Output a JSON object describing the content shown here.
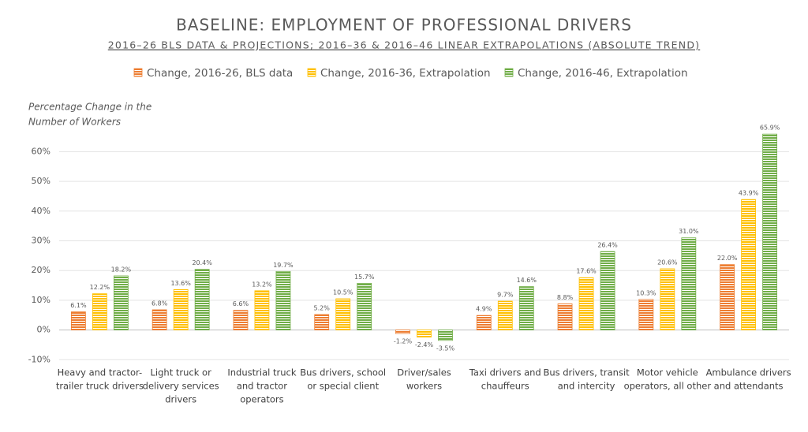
{
  "chart_data": {
    "type": "bar",
    "title": "BASELINE: EMPLOYMENT OF PROFESSIONAL DRIVERS",
    "subtitle": "2016–26 BLS DATA & PROJECTIONS; 2016–36 & 2016–46 LINEAR EXTRAPOLATIONS (ABSOLUTE TREND)",
    "y_label": [
      "Percentage Change in the",
      "Number of Workers"
    ],
    "categories": [
      [
        "Heavy and tractor-",
        "trailer truck drivers"
      ],
      [
        "Light truck or",
        "delivery services",
        "drivers"
      ],
      [
        "Industrial truck",
        "and tractor",
        "operators"
      ],
      [
        "Bus drivers, school",
        "or special client"
      ],
      [
        "Driver/sales",
        "workers"
      ],
      [
        "Taxi drivers and",
        "chauffeurs"
      ],
      [
        "Bus drivers, transit",
        "and intercity"
      ],
      [
        "Motor vehicle",
        "operators, all other"
      ],
      [
        "Ambulance drivers",
        "and attendants"
      ]
    ],
    "series": [
      {
        "name": "Change, 2016-26, BLS data",
        "color": "#ed7d31",
        "values": [
          6.1,
          6.8,
          6.6,
          5.2,
          -1.2,
          4.9,
          8.8,
          10.3,
          22.0
        ],
        "value_labels": [
          "6.1%",
          "6.8%",
          "6.6%",
          "5.2%",
          "-1.2%",
          "4.9%",
          "8.8%",
          "10.3%",
          "22.0%"
        ]
      },
      {
        "name": "Change, 2016-36, Extrapolation",
        "color": "#ffc000",
        "values": [
          12.2,
          13.6,
          13.2,
          10.5,
          -2.4,
          9.7,
          17.6,
          20.6,
          43.9
        ],
        "value_labels": [
          "12.2%",
          "13.6%",
          "13.2%",
          "10.5%",
          "-2.4%",
          "9.7%",
          "17.6%",
          "20.6%",
          "43.9%"
        ]
      },
      {
        "name": "Change, 2016-46, Extrapolation",
        "color": "#70ad47",
        "values": [
          18.2,
          20.4,
          19.7,
          15.7,
          -3.5,
          14.6,
          26.4,
          31.0,
          65.9
        ],
        "value_labels": [
          "18.2%",
          "20.4%",
          "19.7%",
          "15.7%",
          "-3.5%",
          "14.6%",
          "26.4%",
          "31.0%",
          "65.9%"
        ]
      }
    ],
    "ylim": [
      -10,
      70
    ],
    "yticks": [
      {
        "value": -10,
        "label": "-10%"
      },
      {
        "value": 0,
        "label": "0%"
      },
      {
        "value": 10,
        "label": "10%"
      },
      {
        "value": 20,
        "label": "20%"
      },
      {
        "value": 30,
        "label": "30%"
      },
      {
        "value": 40,
        "label": "40%"
      },
      {
        "value": 50,
        "label": "50%"
      },
      {
        "value": 60,
        "label": "60%"
      }
    ],
    "grid": true
  }
}
